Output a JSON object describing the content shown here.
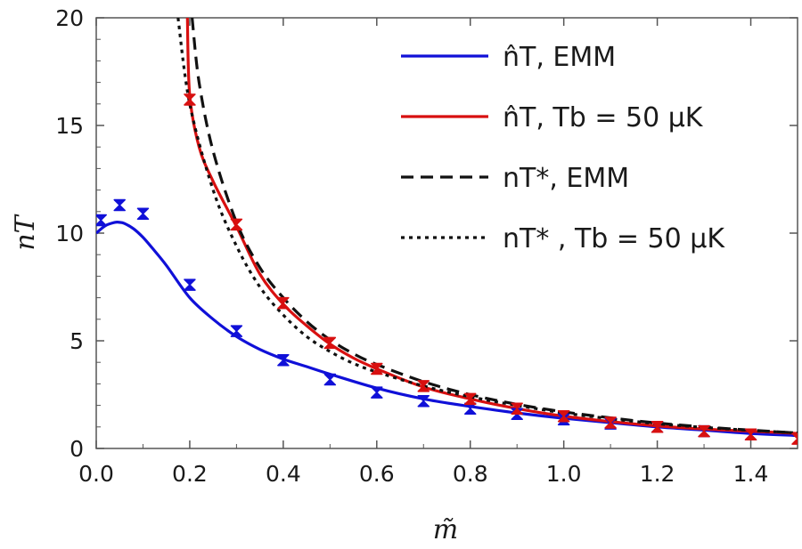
{
  "chart_data": {
    "type": "scatter",
    "xlabel": "m̃",
    "ylabel": "nT",
    "xlim": [
      0,
      1.5
    ],
    "ylim": [
      0,
      20
    ],
    "x_ticks": [
      "0.0",
      "0.2",
      "0.4",
      "0.6",
      "0.8",
      "1.0",
      "1.2",
      "1.4"
    ],
    "y_ticks": [
      "0",
      "5",
      "10",
      "15",
      "20"
    ],
    "legend_position": "top-right",
    "grid": false,
    "colors": {
      "blue": "#1010d8",
      "red": "#d81010",
      "black": "#111111"
    },
    "legend": [
      {
        "label": "n̂T, EMM",
        "style": "solid",
        "color": "#1010d8"
      },
      {
        "label": "n̂T, Tb = 50 μK",
        "style": "solid",
        "color": "#d81010"
      },
      {
        "label": "nT*, EMM",
        "style": "dashed",
        "color": "#111111"
      },
      {
        "label": "nT* , Tb = 50 μK",
        "style": "dotted",
        "color": "#111111"
      }
    ],
    "lines": [
      {
        "style": "solid",
        "color": "#1010d8",
        "x": [
          0.0,
          0.02,
          0.04,
          0.05,
          0.06,
          0.08,
          0.1,
          0.12,
          0.15,
          0.2,
          0.25,
          0.3,
          0.35,
          0.4,
          0.45,
          0.5,
          0.6,
          0.7,
          0.8,
          0.9,
          1.0,
          1.1,
          1.2,
          1.3,
          1.4,
          1.5
        ],
        "y": [
          10.0,
          10.35,
          10.5,
          10.5,
          10.45,
          10.2,
          9.8,
          9.3,
          8.5,
          7.0,
          6.0,
          5.2,
          4.6,
          4.15,
          3.8,
          3.45,
          2.8,
          2.3,
          1.95,
          1.65,
          1.4,
          1.2,
          1.0,
          0.85,
          0.7,
          0.6
        ]
      },
      {
        "style": "solid",
        "color": "#d81010",
        "x": [
          0.195,
          0.2,
          0.22,
          0.25,
          0.3,
          0.35,
          0.4,
          0.45,
          0.5,
          0.55,
          0.6,
          0.7,
          0.8,
          0.9,
          1.0,
          1.1,
          1.2,
          1.3,
          1.4,
          1.5
        ],
        "y": [
          20.0,
          16.4,
          14.0,
          12.4,
          10.3,
          8.1,
          6.7,
          5.7,
          4.85,
          4.2,
          3.7,
          2.85,
          2.3,
          1.85,
          1.5,
          1.25,
          1.05,
          0.9,
          0.8,
          0.7
        ]
      },
      {
        "style": "dashed",
        "color": "#111111",
        "x": [
          0.205,
          0.22,
          0.25,
          0.3,
          0.35,
          0.4,
          0.45,
          0.5,
          0.55,
          0.6,
          0.7,
          0.8,
          0.9,
          1.0,
          1.1,
          1.2,
          1.3,
          1.4,
          1.5
        ],
        "y": [
          20.0,
          17.0,
          13.8,
          10.5,
          8.4,
          7.0,
          5.9,
          5.05,
          4.4,
          3.9,
          3.1,
          2.5,
          2.05,
          1.7,
          1.42,
          1.18,
          1.0,
          0.85,
          0.72
        ]
      },
      {
        "style": "dotted",
        "color": "#111111",
        "x": [
          0.175,
          0.2,
          0.25,
          0.3,
          0.35,
          0.4,
          0.45,
          0.5,
          0.55,
          0.6,
          0.7,
          0.8,
          0.9,
          1.0,
          1.1,
          1.2,
          1.3,
          1.4,
          1.5
        ],
        "y": [
          20.0,
          16.0,
          12.0,
          9.4,
          7.5,
          6.2,
          5.2,
          4.5,
          3.95,
          3.55,
          2.9,
          2.4,
          2.0,
          1.65,
          1.38,
          1.15,
          0.98,
          0.84,
          0.72
        ]
      }
    ],
    "points": [
      {
        "color": "#1010d8",
        "x": [
          0.01,
          0.05,
          0.1,
          0.2,
          0.3,
          0.4,
          0.5,
          0.6,
          0.7,
          0.8,
          0.9,
          1.0,
          1.1,
          1.2,
          1.3,
          1.4
        ],
        "y": [
          10.6,
          11.3,
          10.9,
          7.6,
          5.45,
          4.1,
          3.2,
          2.6,
          2.2,
          1.85,
          1.6,
          1.35,
          1.15,
          1.0,
          0.8,
          0.65
        ]
      },
      {
        "color": "#d81010",
        "x": [
          0.2,
          0.3,
          0.4,
          0.5,
          0.6,
          0.7,
          0.8,
          0.9,
          1.0,
          1.1,
          1.2,
          1.3,
          1.4,
          1.5
        ],
        "y": [
          16.2,
          10.4,
          6.75,
          4.9,
          3.7,
          2.9,
          2.3,
          1.85,
          1.5,
          1.2,
          1.0,
          0.8,
          0.65,
          0.45
        ]
      }
    ]
  }
}
